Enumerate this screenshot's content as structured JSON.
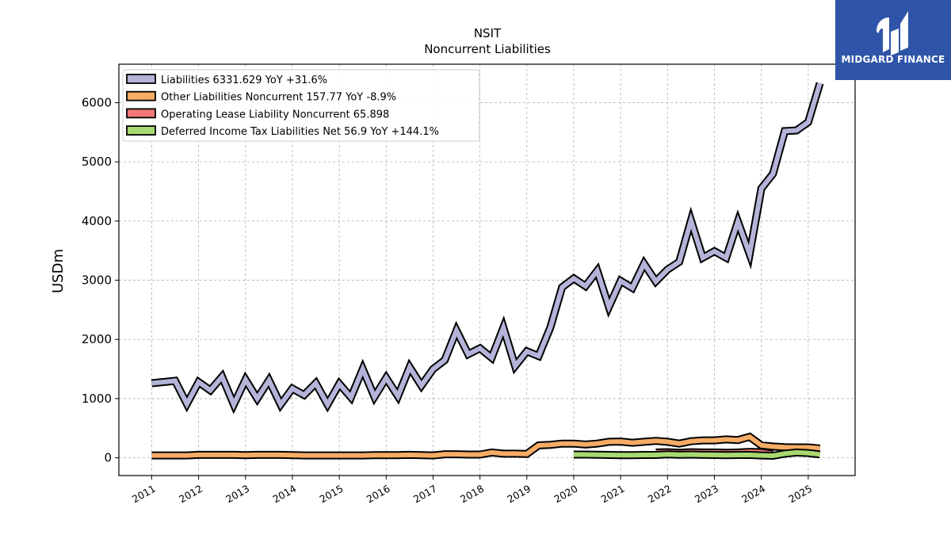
{
  "chart_data": {
    "type": "line",
    "title": "NSIT",
    "subtitle": "Noncurrent  Liabilities",
    "ylabel": "USDm",
    "xlabel": "",
    "ylim": [
      -300,
      6650
    ],
    "xlim": [
      2010.3,
      2026.0
    ],
    "yticks": [
      0,
      1000,
      2000,
      3000,
      4000,
      5000,
      6000
    ],
    "xticks": [
      "2011",
      "2012",
      "2013",
      "2014",
      "2015",
      "2016",
      "2017",
      "2018",
      "2019",
      "2020",
      "2021",
      "2022",
      "2023",
      "2024",
      "2025"
    ],
    "grid": true,
    "legend_position": "top-left",
    "series": [
      {
        "name": "Liabilities  6331.629 YoY +31.6%",
        "color": "#b4b4d9",
        "x": [
          2011.0,
          2011.25,
          2011.5,
          2011.75,
          2012.0,
          2012.25,
          2012.5,
          2012.75,
          2013.0,
          2013.25,
          2013.5,
          2013.75,
          2014.0,
          2014.25,
          2014.5,
          2014.75,
          2015.0,
          2015.25,
          2015.5,
          2015.75,
          2016.0,
          2016.25,
          2016.5,
          2016.75,
          2017.0,
          2017.25,
          2017.5,
          2017.75,
          2018.0,
          2018.25,
          2018.5,
          2018.75,
          2019.0,
          2019.25,
          2019.5,
          2019.75,
          2020.0,
          2020.25,
          2020.5,
          2020.75,
          2021.0,
          2021.25,
          2021.5,
          2021.75,
          2022.0,
          2022.25,
          2022.5,
          2022.75,
          2023.0,
          2023.25,
          2023.5,
          2023.75,
          2024.0,
          2024.25,
          2024.5,
          2024.75,
          2025.0,
          2025.25
        ],
        "values": [
          1260,
          1280,
          1300,
          910,
          1280,
          1140,
          1370,
          900,
          1320,
          1000,
          1310,
          900,
          1170,
          1060,
          1260,
          900,
          1250,
          1020,
          1500,
          1030,
          1350,
          1040,
          1530,
          1220,
          1500,
          1650,
          2150,
          1750,
          1850,
          1690,
          2200,
          1550,
          1800,
          1720,
          2200,
          2880,
          3030,
          2900,
          3160,
          2550,
          2990,
          2870,
          3280,
          2980,
          3180,
          3310,
          4010,
          3380,
          3490,
          3380,
          3990,
          3440,
          4550,
          4800,
          5520,
          5530,
          5670,
          6330
        ]
      },
      {
        "name": "Other Liabilities Noncurrent  157.77 YoY -8.9%",
        "color": "#f6ac66",
        "x": [
          2011.0,
          2011.25,
          2011.5,
          2011.75,
          2012.0,
          2012.25,
          2012.5,
          2012.75,
          2013.0,
          2013.25,
          2013.5,
          2013.75,
          2014.0,
          2014.25,
          2014.5,
          2014.75,
          2015.0,
          2015.25,
          2015.5,
          2015.75,
          2016.0,
          2016.25,
          2016.5,
          2016.75,
          2017.0,
          2017.25,
          2017.5,
          2017.75,
          2018.0,
          2018.25,
          2018.5,
          2018.75,
          2019.0,
          2019.25,
          2019.5,
          2019.75,
          2020.0,
          2020.25,
          2020.5,
          2020.75,
          2021.0,
          2021.25,
          2021.5,
          2021.75,
          2022.0,
          2022.25,
          2022.5,
          2022.75,
          2023.0,
          2023.25,
          2023.5,
          2023.75,
          2024.0,
          2024.25,
          2024.5,
          2024.75,
          2025.0,
          2025.25
        ],
        "values": [
          40,
          40,
          40,
          40,
          50,
          50,
          50,
          50,
          45,
          50,
          50,
          50,
          45,
          40,
          40,
          40,
          40,
          40,
          40,
          45,
          45,
          45,
          50,
          45,
          40,
          60,
          60,
          55,
          55,
          90,
          70,
          70,
          65,
          210,
          220,
          240,
          240,
          225,
          240,
          270,
          275,
          255,
          270,
          285,
          270,
          240,
          280,
          295,
          295,
          310,
          300,
          355,
          210,
          190,
          180,
          175,
          175,
          158
        ]
      },
      {
        "name": "Operating Lease Liability Noncurrent  65.898",
        "color": "#f07874",
        "x": [
          2021.75,
          2022.0,
          2022.25,
          2022.5,
          2022.75,
          2023.0,
          2023.25,
          2023.5,
          2023.75,
          2024.0,
          2024.25
        ],
        "values": [
          90,
          95,
          85,
          95,
          90,
          90,
          85,
          90,
          100,
          95,
          66
        ]
      },
      {
        "name": "Deferred Income Tax Liabilities Net  56.9 YoY +144.1%",
        "color": "#a8d870",
        "x": [
          2020.0,
          2020.25,
          2020.5,
          2020.75,
          2021.0,
          2021.25,
          2021.5,
          2021.75,
          2022.0,
          2022.25,
          2022.5,
          2022.75,
          2023.0,
          2023.25,
          2023.5,
          2023.75,
          2024.0,
          2024.25,
          2024.5,
          2024.75,
          2025.0,
          2025.25
        ],
        "values": [
          55,
          55,
          52,
          48,
          45,
          45,
          48,
          48,
          58,
          52,
          55,
          50,
          48,
          45,
          48,
          48,
          40,
          35,
          70,
          90,
          80,
          57
        ]
      }
    ]
  },
  "logo": {
    "text": "MIDGARD FINANCE"
  }
}
